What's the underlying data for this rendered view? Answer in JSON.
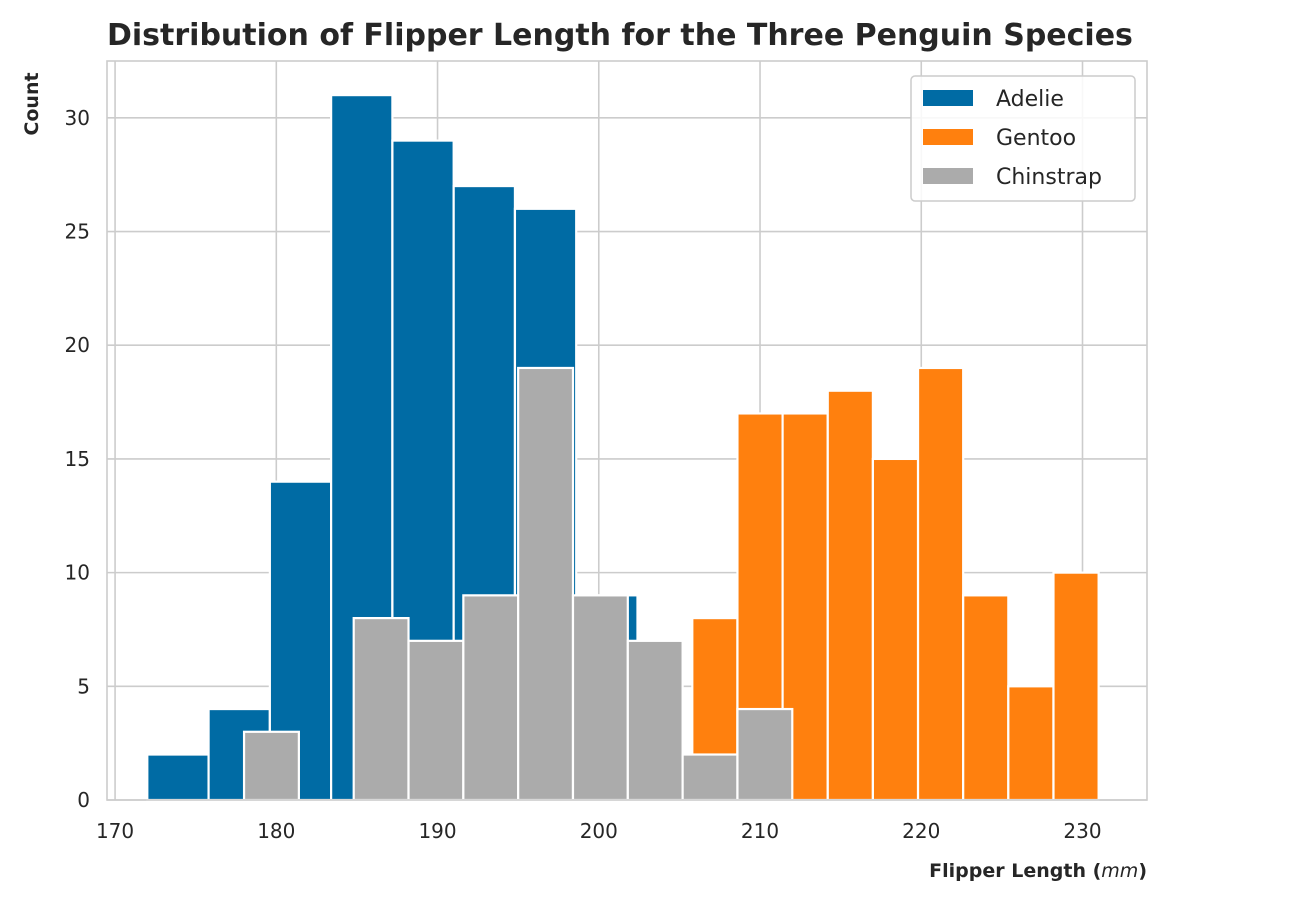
{
  "chart_data": {
    "type": "bar",
    "title": "Distribution of Flipper Length for the Three Penguin Species",
    "xlabel_main": "Flipper Length (",
    "xlabel_unit": "mm",
    "xlabel_close": ")",
    "ylabel": "Count",
    "xlim": [
      169.5,
      234
    ],
    "ylim": [
      0,
      32.5
    ],
    "xticks": [
      170,
      180,
      190,
      200,
      210,
      220,
      230
    ],
    "yticks": [
      0,
      5,
      10,
      15,
      20,
      25,
      30
    ],
    "grid": true,
    "legend_position": "top-right",
    "series": [
      {
        "name": "Adelie",
        "color": "#006BA4",
        "bins": [
          {
            "x0": 172.0,
            "x1": 175.8,
            "count": 2
          },
          {
            "x0": 175.8,
            "x1": 179.6,
            "count": 4
          },
          {
            "x0": 179.6,
            "x1": 183.4,
            "count": 14
          },
          {
            "x0": 183.4,
            "x1": 187.2,
            "count": 31
          },
          {
            "x0": 187.2,
            "x1": 191.0,
            "count": 29
          },
          {
            "x0": 191.0,
            "x1": 194.8,
            "count": 27
          },
          {
            "x0": 194.8,
            "x1": 198.6,
            "count": 26
          },
          {
            "x0": 198.6,
            "x1": 202.4,
            "count": 9
          },
          {
            "x0": 202.4,
            "x1": 206.2,
            "count": 2
          },
          {
            "x0": 206.2,
            "x1": 210.0,
            "count": 1
          }
        ]
      },
      {
        "name": "Gentoo",
        "color": "#FF800E",
        "bins": [
          {
            "x0": 203.0,
            "x1": 205.8,
            "count": 2
          },
          {
            "x0": 205.8,
            "x1": 208.6,
            "count": 8
          },
          {
            "x0": 208.6,
            "x1": 211.4,
            "count": 17
          },
          {
            "x0": 211.4,
            "x1": 214.2,
            "count": 17
          },
          {
            "x0": 214.2,
            "x1": 217.0,
            "count": 18
          },
          {
            "x0": 217.0,
            "x1": 219.8,
            "count": 15
          },
          {
            "x0": 219.8,
            "x1": 222.6,
            "count": 19
          },
          {
            "x0": 222.6,
            "x1": 225.4,
            "count": 9
          },
          {
            "x0": 225.4,
            "x1": 228.2,
            "count": 5
          },
          {
            "x0": 228.2,
            "x1": 231.0,
            "count": 10
          }
        ]
      },
      {
        "name": "Chinstrap",
        "color": "#ABABAB",
        "bins": [
          {
            "x0": 178.0,
            "x1": 181.4,
            "count": 3
          },
          {
            "x0": 181.4,
            "x1": 184.8,
            "count": 0
          },
          {
            "x0": 184.8,
            "x1": 188.2,
            "count": 8
          },
          {
            "x0": 188.2,
            "x1": 191.6,
            "count": 7
          },
          {
            "x0": 191.6,
            "x1": 195.0,
            "count": 9
          },
          {
            "x0": 195.0,
            "x1": 198.4,
            "count": 19
          },
          {
            "x0": 198.4,
            "x1": 201.8,
            "count": 9
          },
          {
            "x0": 201.8,
            "x1": 205.2,
            "count": 7
          },
          {
            "x0": 205.2,
            "x1": 208.6,
            "count": 2
          },
          {
            "x0": 208.6,
            "x1": 212.0,
            "count": 4
          }
        ]
      }
    ]
  }
}
